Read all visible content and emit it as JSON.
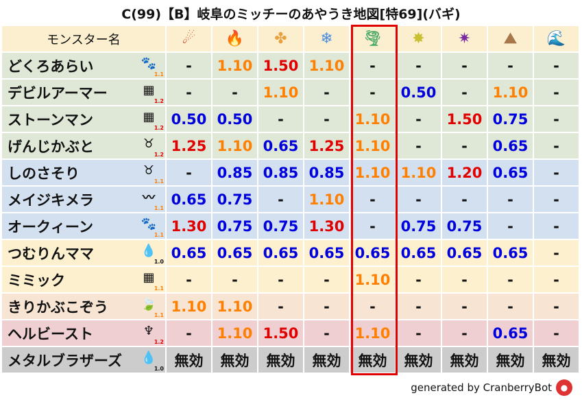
{
  "title": "C(99)【B】岐阜のミッチーのあやうき地図[特69](バギ)",
  "header": {
    "name_label": "モンスター名",
    "elements": [
      {
        "icon": "fire-ball-icon",
        "glyph": "☄",
        "color": "#d2401e"
      },
      {
        "icon": "flame-icon",
        "glyph": "🔥",
        "color": "#e8501a"
      },
      {
        "icon": "explosion-icon",
        "glyph": "✤",
        "color": "#e8a040"
      },
      {
        "icon": "ice-crystal-icon",
        "glyph": "❄",
        "color": "#4a8ce0"
      },
      {
        "icon": "tornado-icon",
        "glyph": "🌪",
        "color": "#4caa6a"
      },
      {
        "icon": "lightning-icon",
        "glyph": "✸",
        "color": "#c8c030"
      },
      {
        "icon": "darkness-icon",
        "glyph": "✷",
        "color": "#7a2aa0"
      },
      {
        "icon": "earth-icon",
        "glyph": "⛰",
        "color": "#a8784a"
      },
      {
        "icon": "water-wave-icon",
        "glyph": "🌊",
        "color": "#2a7ad0"
      }
    ]
  },
  "highlight_column": 4,
  "colors": {
    "orange": "#ff8000",
    "red": "#e00000",
    "blue": "#0000dd",
    "black": "#111111"
  },
  "rows": [
    {
      "name": "どくろあらい",
      "icon": "paw-icon",
      "glyph": "🐾",
      "sys": "1.1",
      "sys_color": "#ff8000",
      "bg": "#dfe7d6",
      "vals": [
        "-",
        "1.10",
        "1.50",
        "1.10",
        "-",
        "-",
        "-",
        "-",
        "-"
      ]
    },
    {
      "name": "デビルアーマー",
      "icon": "brick-icon",
      "glyph": "▦",
      "sys": "1.2",
      "sys_color": "#e00000",
      "bg": "#dfe7d6",
      "vals": [
        "-",
        "-",
        "1.10",
        "-",
        "-",
        "0.50",
        "-",
        "1.10",
        "-"
      ]
    },
    {
      "name": "ストーンマン",
      "icon": "brick-icon",
      "glyph": "▦",
      "sys": "1.2",
      "sys_color": "#e00000",
      "bg": "#dfe7d6",
      "vals": [
        "0.50",
        "0.50",
        "-",
        "-",
        "1.10",
        "-",
        "1.50",
        "0.75",
        "-"
      ]
    },
    {
      "name": "げんじかぶと",
      "icon": "bug-icon",
      "glyph": "♉",
      "sys": "1.2",
      "sys_color": "#e00000",
      "bg": "#dfe7d6",
      "vals": [
        "1.25",
        "1.10",
        "0.65",
        "1.25",
        "1.10",
        "-",
        "-",
        "0.65",
        "-"
      ]
    },
    {
      "name": "しのさそり",
      "icon": "bug-icon",
      "glyph": "♉",
      "sys": "1.1",
      "sys_color": "#ff8000",
      "bg": "#d3e0ef",
      "vals": [
        "-",
        "0.85",
        "0.85",
        "0.85",
        "1.10",
        "1.10",
        "1.20",
        "0.65",
        "-"
      ]
    },
    {
      "name": "メイジキメラ",
      "icon": "wing-icon",
      "glyph": "〰",
      "sys": "1.1",
      "sys_color": "#ff8000",
      "bg": "#d3e0ef",
      "vals": [
        "0.65",
        "0.75",
        "-",
        "1.10",
        "-",
        "-",
        "-",
        "-",
        "-"
      ]
    },
    {
      "name": "オークィーン",
      "icon": "paw-icon",
      "glyph": "🐾",
      "sys": "1.1",
      "sys_color": "#ff8000",
      "bg": "#d3e0ef",
      "vals": [
        "1.30",
        "0.75",
        "0.75",
        "1.30",
        "-",
        "0.75",
        "0.75",
        "-",
        "-"
      ]
    },
    {
      "name": "つむりんママ",
      "icon": "slime-icon",
      "glyph": "💧",
      "sys": "1.0",
      "sys_color": "#111111",
      "bg": "#fcf0cf",
      "vals": [
        "0.65",
        "0.65",
        "0.65",
        "0.65",
        "0.65",
        "0.65",
        "0.65",
        "0.65",
        "-"
      ]
    },
    {
      "name": "ミミック",
      "icon": "brick-icon",
      "glyph": "▦",
      "sys": "1.1",
      "sys_color": "#ff8000",
      "bg": "#fcf0cf",
      "vals": [
        "-",
        "-",
        "-",
        "-",
        "1.10",
        "-",
        "-",
        "-",
        "-"
      ]
    },
    {
      "name": "きりかぶこぞう",
      "icon": "leaf-icon",
      "glyph": "🍃",
      "sys": "1.1",
      "sys_color": "#ff8000",
      "bg": "#f8e4d2",
      "vals": [
        "1.10",
        "1.10",
        "-",
        "-",
        "-",
        "-",
        "-",
        "-",
        "-"
      ]
    },
    {
      "name": "ヘルビースト",
      "icon": "demon-trident-icon",
      "glyph": "♆",
      "sys": "1.2",
      "sys_color": "#e00000",
      "bg": "#efcfd2",
      "vals": [
        "-",
        "1.10",
        "1.50",
        "-",
        "1.10",
        "-",
        "-",
        "0.65",
        "-"
      ]
    },
    {
      "name": "メタルブラザーズ",
      "icon": "slime-icon",
      "glyph": "💧",
      "sys": "1.0",
      "sys_color": "#111111",
      "bg": "#cccccc",
      "vals": [
        "無効",
        "無効",
        "無効",
        "無効",
        "無効",
        "無効",
        "無効",
        "無効",
        "無効"
      ]
    }
  ],
  "footer": {
    "text": "generated by CranberryBot",
    "logo": "cranberry-bot-logo"
  }
}
